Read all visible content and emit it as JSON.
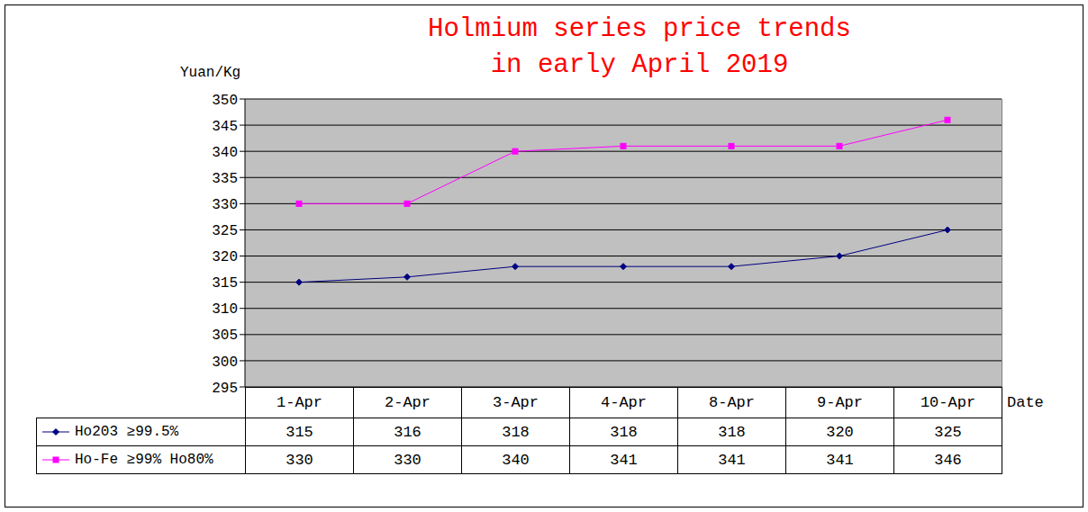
{
  "chart_data": {
    "type": "line",
    "title": "Holmium series price trends\nin early April 2019",
    "y_label": "Yuan/Kg",
    "x_label": "Date",
    "categories": [
      "1-Apr",
      "2-Apr",
      "3-Apr",
      "4-Apr",
      "8-Apr",
      "9-Apr",
      "10-Apr"
    ],
    "series": [
      {
        "name": "Ho203 ≥99.5%",
        "color": "#000080",
        "marker": "diamond",
        "values": [
          315,
          316,
          318,
          318,
          318,
          320,
          325
        ]
      },
      {
        "name": "Ho-Fe ≥99% Ho80%",
        "color": "#ff00ff",
        "marker": "square",
        "values": [
          330,
          330,
          340,
          341,
          341,
          341,
          346
        ]
      }
    ],
    "ylim": [
      295,
      350
    ],
    "yticks": [
      295,
      300,
      305,
      310,
      315,
      320,
      325,
      330,
      335,
      340,
      345,
      350
    ],
    "grid": true
  }
}
